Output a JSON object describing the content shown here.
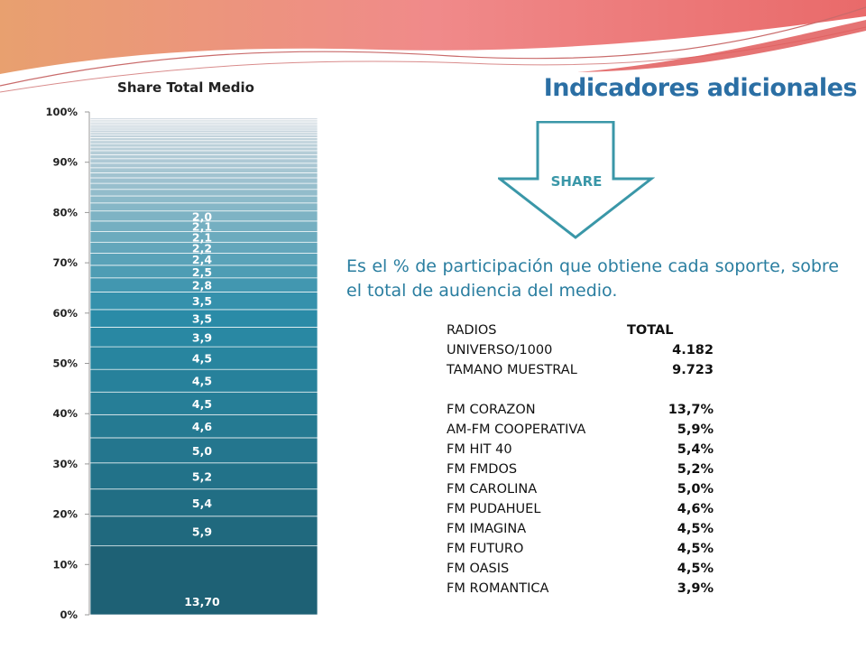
{
  "title": "Indicadores adicionales",
  "arrow": {
    "label": "SHARE"
  },
  "definition": "Es el % de participación que obtiene cada soporte, sobre el total de audiencia del medio.",
  "colors": {
    "title": "#2b6fa4",
    "definition": "#2a7ea0",
    "arrow_stroke": "#3a97a8",
    "chart_dark": "#1c5c6e",
    "chart_mid": "#2a8ca8",
    "chart_light": "#d8dde3"
  },
  "table": {
    "header": {
      "label": "RADIOS",
      "value": "TOTAL"
    },
    "meta": [
      {
        "label": "UNIVERSO/1000",
        "value": "4.182"
      },
      {
        "label": "TAMANO MUESTRAL",
        "value": "9.723"
      }
    ],
    "rows": [
      {
        "label": "FM CORAZON",
        "value": "13,7%"
      },
      {
        "label": "AM-FM COOPERATIVA",
        "value": "5,9%"
      },
      {
        "label": "FM HIT 40",
        "value": "5,4%"
      },
      {
        "label": "FM FMDOS",
        "value": "5,2%"
      },
      {
        "label": "FM CAROLINA",
        "value": "5,0%"
      },
      {
        "label": "FM PUDAHUEL",
        "value": "4,6%"
      },
      {
        "label": "FM IMAGINA",
        "value": "4,5%"
      },
      {
        "label": "FM FUTURO",
        "value": "4,5%"
      },
      {
        "label": "FM OASIS",
        "value": "4,5%"
      },
      {
        "label": "FM ROMANTICA",
        "value": "3,9%"
      }
    ]
  },
  "chart_data": {
    "type": "bar",
    "stacked": true,
    "title": "Share Total Medio",
    "ylim": [
      0,
      100
    ],
    "yticks": [
      "0%",
      "10%",
      "20%",
      "30%",
      "40%",
      "50%",
      "60%",
      "70%",
      "80%",
      "90%",
      "100%"
    ],
    "grid": false,
    "legend": "none",
    "segments": [
      {
        "value": 13.7,
        "label": "13,70"
      },
      {
        "value": 5.9,
        "label": "5,9"
      },
      {
        "value": 5.4,
        "label": "5,4"
      },
      {
        "value": 5.2,
        "label": "5,2"
      },
      {
        "value": 5.0,
        "label": "5,0"
      },
      {
        "value": 4.6,
        "label": "4,6"
      },
      {
        "value": 4.5,
        "label": "4,5"
      },
      {
        "value": 4.5,
        "label": "4,5"
      },
      {
        "value": 4.5,
        "label": "4,5"
      },
      {
        "value": 3.9,
        "label": "3,9"
      },
      {
        "value": 3.5,
        "label": "3,5"
      },
      {
        "value": 3.5,
        "label": "3,5"
      },
      {
        "value": 2.8,
        "label": "2,8"
      },
      {
        "value": 2.5,
        "label": "2,5"
      },
      {
        "value": 2.4,
        "label": "2,4"
      },
      {
        "value": 2.2,
        "label": "2,2"
      },
      {
        "value": 2.1,
        "label": "2,1"
      },
      {
        "value": 2.1,
        "label": "2,1"
      },
      {
        "value": 2.0,
        "label": "2,0"
      },
      {
        "value": 1.6
      },
      {
        "value": 1.4
      },
      {
        "value": 1.3
      },
      {
        "value": 1.2
      },
      {
        "value": 1.1
      },
      {
        "value": 1.0
      },
      {
        "value": 1.0
      },
      {
        "value": 0.9
      },
      {
        "value": 0.9
      },
      {
        "value": 0.8
      },
      {
        "value": 0.8
      },
      {
        "value": 0.7
      },
      {
        "value": 0.7
      },
      {
        "value": 0.6
      },
      {
        "value": 0.6
      },
      {
        "value": 0.5
      },
      {
        "value": 0.5
      },
      {
        "value": 0.5
      },
      {
        "value": 0.4
      },
      {
        "value": 0.4
      },
      {
        "value": 0.4
      },
      {
        "value": 0.3
      },
      {
        "value": 0.3
      },
      {
        "value": 0.3
      },
      {
        "value": 0.3
      }
    ]
  }
}
